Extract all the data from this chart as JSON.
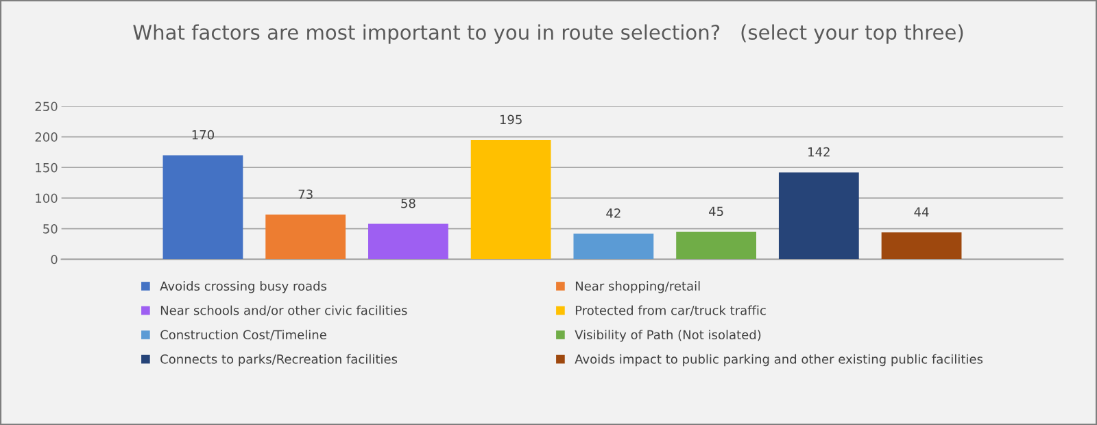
{
  "chart_data": {
    "type": "bar",
    "title": "What factors are most important to you in route selection?   (select your top three)",
    "categories": [
      null
    ],
    "series": [
      {
        "name": "Avoids crossing busy roads",
        "color": "#4472c4",
        "values": [
          170
        ]
      },
      {
        "name": "Near shopping/retail",
        "color": "#ed7d31",
        "values": [
          73
        ]
      },
      {
        "name": "Near schools and/or other civic facilities",
        "color": "#9e5ff2",
        "values": [
          58
        ]
      },
      {
        "name": "Protected from car/truck traffic",
        "color": "#ffc000",
        "values": [
          195
        ]
      },
      {
        "name": "Construction Cost/Timeline",
        "color": "#5b9bd5",
        "values": [
          42
        ]
      },
      {
        "name": "Visibility of Path (Not isolated)",
        "color": "#70ad47",
        "values": [
          45
        ]
      },
      {
        "name": "Connects to parks/Recreation facilities",
        "color": "#264478",
        "values": [
          142
        ]
      },
      {
        "name": "Avoids impact to public parking and other existing public facilities",
        "color": "#9e480e",
        "values": [
          44
        ]
      }
    ],
    "ylim": [
      0,
      250
    ],
    "yticks": [
      0,
      50,
      100,
      150,
      200,
      250
    ],
    "grid": "y",
    "legend": "bottom",
    "data_labels": true,
    "tick_labels": "y"
  }
}
